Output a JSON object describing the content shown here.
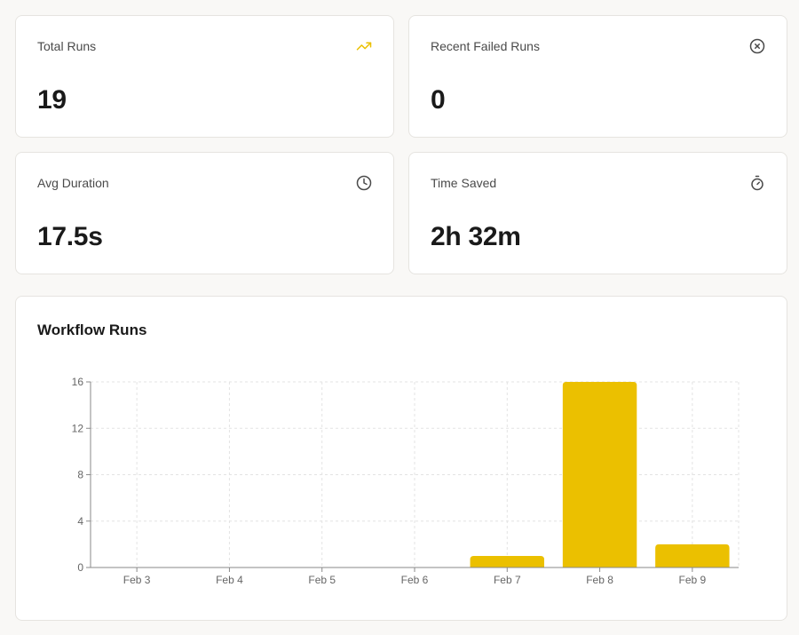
{
  "stats": [
    {
      "label": "Total Runs",
      "value": "19",
      "icon": "trending-up-icon"
    },
    {
      "label": "Recent Failed Runs",
      "value": "0",
      "icon": "x-circle-icon"
    },
    {
      "label": "Avg Duration",
      "value": "17.5s",
      "icon": "clock-icon"
    },
    {
      "label": "Time Saved",
      "value": "2h 32m",
      "icon": "stopwatch-icon"
    }
  ],
  "colors": {
    "accent": "#ebc000",
    "icon": "#4a4a4a"
  },
  "chart": {
    "title": "Workflow Runs"
  },
  "chart_data": {
    "type": "bar",
    "title": "Workflow Runs",
    "categories": [
      "Feb 3",
      "Feb 4",
      "Feb 5",
      "Feb 6",
      "Feb 7",
      "Feb 8",
      "Feb 9"
    ],
    "values": [
      0,
      0,
      0,
      0,
      1,
      16,
      2
    ],
    "ylim": [
      0,
      16
    ],
    "yticks": [
      0,
      4,
      8,
      12,
      16
    ],
    "grid": true,
    "legend": "none",
    "color": "#ebc000"
  }
}
